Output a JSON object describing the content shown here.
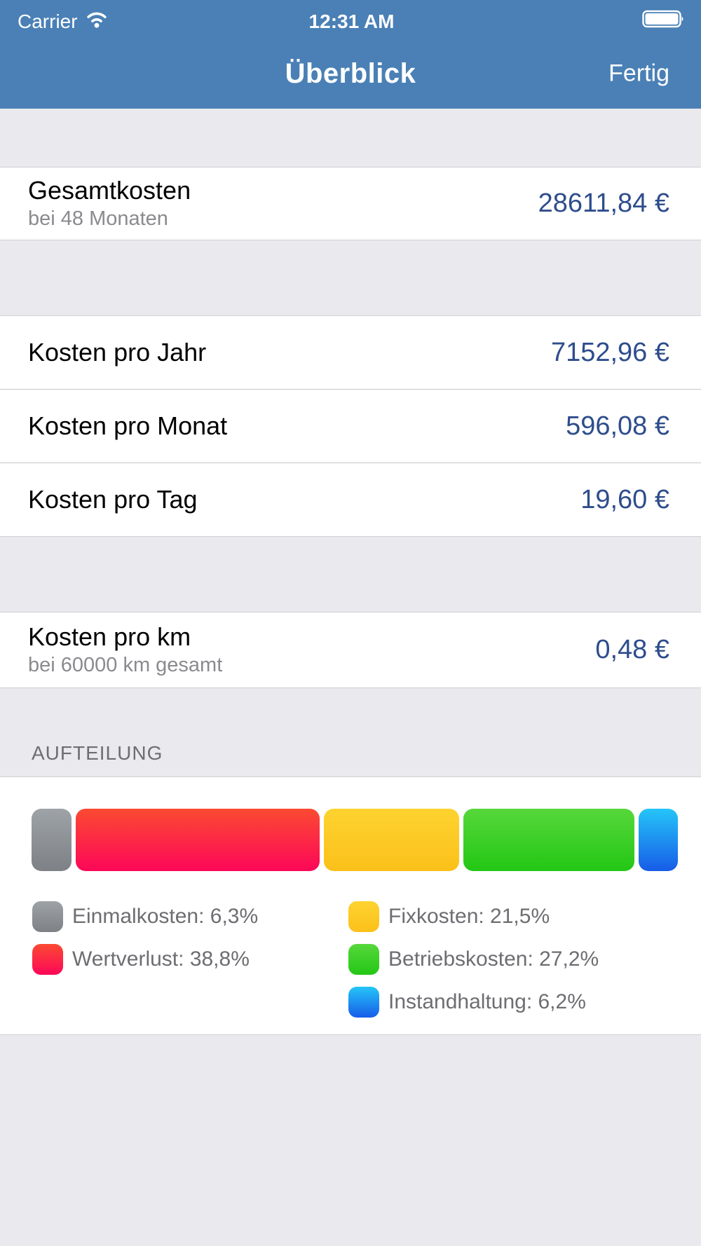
{
  "status_bar": {
    "carrier": "Carrier",
    "time": "12:31 AM"
  },
  "nav": {
    "title": "Überblick",
    "done_label": "Fertig"
  },
  "rows": {
    "gesamtkosten": {
      "title": "Gesamtkosten",
      "subtitle": "bei 48 Monaten",
      "value": "28611,84 €"
    },
    "pro_jahr": {
      "title": "Kosten pro Jahr",
      "value": "7152,96 €"
    },
    "pro_monat": {
      "title": "Kosten pro Monat",
      "value": "596,08 €"
    },
    "pro_tag": {
      "title": "Kosten pro Tag",
      "value": "19,60 €"
    },
    "pro_km": {
      "title": "Kosten pro km",
      "subtitle": "bei 60000 km gesamt",
      "value": "0,48 €"
    }
  },
  "section_header": "AUFTEILUNG",
  "chart_data": {
    "type": "bar",
    "title": "Aufteilung",
    "orientation": "horizontal-stacked",
    "unit": "%",
    "categories": [
      "Einmalkosten",
      "Wertverlust",
      "Fixkosten",
      "Betriebskosten",
      "Instandhaltung"
    ],
    "values": [
      6.3,
      38.8,
      21.5,
      27.2,
      6.2
    ],
    "segments": [
      {
        "name": "Einmalkosten",
        "value": 6.3,
        "label": "Einmalkosten: 6,3%",
        "color_top": "#9ea3a8",
        "color_bottom": "#7d8186",
        "column": "left"
      },
      {
        "name": "Wertverlust",
        "value": 38.8,
        "label": "Wertverlust: 38,8%",
        "color_top": "#fb4a32",
        "color_bottom": "#fc0758",
        "column": "left"
      },
      {
        "name": "Fixkosten",
        "value": 21.5,
        "label": "Fixkosten: 21,5%",
        "color_top": "#fdd330",
        "color_bottom": "#fcc01a",
        "column": "right"
      },
      {
        "name": "Betriebskosten",
        "value": 27.2,
        "label": "Betriebskosten: 27,2%",
        "color_top": "#57d73b",
        "color_bottom": "#23c715",
        "column": "right"
      },
      {
        "name": "Instandhaltung",
        "value": 6.2,
        "label": "Instandhaltung: 6,2%",
        "color_top": "#25c5f8",
        "color_bottom": "#175ce8",
        "column": "right"
      }
    ],
    "legend_position": "below-bar"
  },
  "colors": {
    "header_blue": "#4a80b5",
    "background_gray": "#e9e9ee",
    "value_navy": "#2e4d8c",
    "subtitle_gray": "#8a8a8f",
    "section_label_gray": "#6d6d72",
    "separator": "#c8c7cc"
  }
}
